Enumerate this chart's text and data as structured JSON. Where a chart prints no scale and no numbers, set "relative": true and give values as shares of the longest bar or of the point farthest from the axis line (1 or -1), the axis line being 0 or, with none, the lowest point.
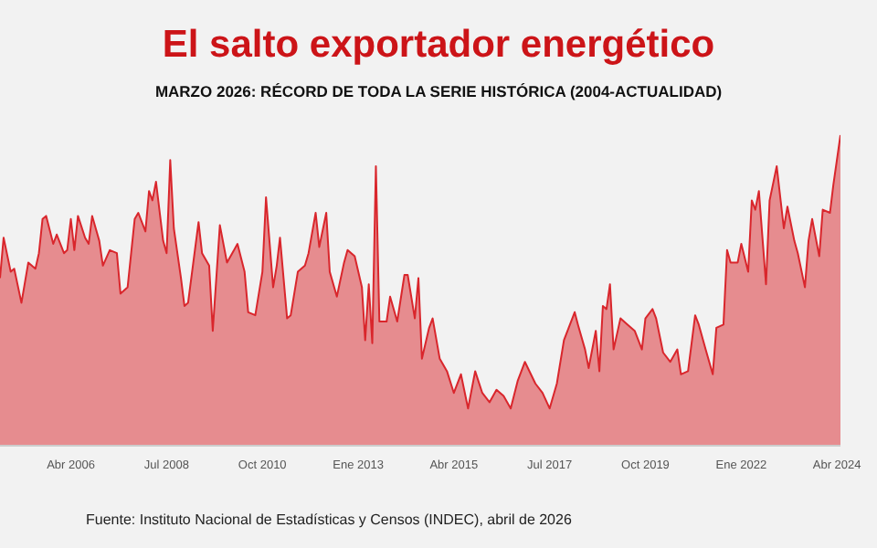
{
  "chart_data": {
    "type": "area",
    "title": "El salto exportador energético",
    "subtitle": "MARZO 2026: RÉCORD DE TODA LA SERIE HISTÓRICA (2004-ACTUALIDAD)",
    "relative": true,
    "x": [
      "2004-08",
      "2004-09",
      "2004-11",
      "2004-12",
      "2005-02",
      "2005-04",
      "2005-06",
      "2005-07",
      "2005-08",
      "2005-09",
      "2005-11",
      "2005-12",
      "2006-02",
      "2006-03",
      "2006-04",
      "2006-05",
      "2006-06",
      "2006-08",
      "2006-09",
      "2006-10",
      "2006-12",
      "2007-01",
      "2007-03",
      "2007-05",
      "2007-06",
      "2007-08",
      "2007-10",
      "2007-11",
      "2008-01",
      "2008-02",
      "2008-03",
      "2008-04",
      "2008-06",
      "2008-07",
      "2008-08",
      "2008-09",
      "2008-11",
      "2008-12",
      "2009-01",
      "2009-04",
      "2009-05",
      "2009-07",
      "2009-08",
      "2009-10",
      "2009-12",
      "2010-01",
      "2010-03",
      "2010-05",
      "2010-06",
      "2010-08",
      "2010-10",
      "2010-11",
      "2011-01",
      "2011-02",
      "2011-03",
      "2011-05",
      "2011-06",
      "2011-08",
      "2011-10",
      "2011-11",
      "2012-01",
      "2012-02",
      "2012-04",
      "2012-05",
      "2012-07",
      "2012-09",
      "2012-10",
      "2012-12",
      "2013-02",
      "2013-03",
      "2013-04",
      "2013-05",
      "2013-06",
      "2013-07",
      "2013-09",
      "2013-10",
      "2013-12",
      "2014-02",
      "2014-03",
      "2014-05",
      "2014-06",
      "2014-07",
      "2014-09",
      "2014-10",
      "2014-12",
      "2015-02",
      "2015-04",
      "2015-06",
      "2015-08",
      "2015-10",
      "2015-12",
      "2016-02",
      "2016-04",
      "2016-06",
      "2016-08",
      "2016-10",
      "2016-12",
      "2017-03",
      "2017-05",
      "2017-07",
      "2017-09",
      "2017-11",
      "2018-02",
      "2018-03",
      "2018-05",
      "2018-06",
      "2018-08",
      "2018-09",
      "2018-10",
      "2018-11",
      "2018-12",
      "2019-01",
      "2019-03",
      "2019-05",
      "2019-07",
      "2019-09",
      "2019-10",
      "2019-12",
      "2020-01",
      "2020-03",
      "2020-05",
      "2020-07",
      "2020-08",
      "2020-10",
      "2020-12",
      "2021-01",
      "2021-03",
      "2021-05",
      "2021-06",
      "2021-08",
      "2021-09",
      "2021-10",
      "2021-12",
      "2022-01",
      "2022-03",
      "2022-04",
      "2022-05",
      "2022-06",
      "2022-08",
      "2022-09",
      "2022-11",
      "2023-01",
      "2023-02",
      "2023-04",
      "2023-05",
      "2023-07",
      "2023-08",
      "2023-09",
      "2023-11",
      "2023-12",
      "2024-02",
      "2024-03",
      "2024-05"
    ],
    "series": [
      {
        "color": "#d9262c",
        "values": [
          0.54,
          0.67,
          0.56,
          0.57,
          0.46,
          0.59,
          0.57,
          0.62,
          0.73,
          0.74,
          0.65,
          0.68,
          0.62,
          0.63,
          0.73,
          0.63,
          0.74,
          0.67,
          0.65,
          0.74,
          0.66,
          0.58,
          0.63,
          0.62,
          0.49,
          0.51,
          0.73,
          0.75,
          0.69,
          0.82,
          0.79,
          0.85,
          0.66,
          0.62,
          0.92,
          0.7,
          0.54,
          0.45,
          0.46,
          0.72,
          0.62,
          0.58,
          0.37,
          0.71,
          0.59,
          0.61,
          0.65,
          0.56,
          0.43,
          0.42,
          0.56,
          0.8,
          0.51,
          0.58,
          0.67,
          0.41,
          0.42,
          0.56,
          0.58,
          0.62,
          0.75,
          0.64,
          0.75,
          0.56,
          0.48,
          0.59,
          0.63,
          0.61,
          0.51,
          0.34,
          0.52,
          0.33,
          0.9,
          0.4,
          0.4,
          0.48,
          0.4,
          0.55,
          0.55,
          0.41,
          0.54,
          0.28,
          0.38,
          0.41,
          0.28,
          0.24,
          0.17,
          0.23,
          0.12,
          0.24,
          0.17,
          0.14,
          0.18,
          0.16,
          0.12,
          0.21,
          0.27,
          0.2,
          0.17,
          0.12,
          0.2,
          0.34,
          0.43,
          0.39,
          0.31,
          0.25,
          0.37,
          0.24,
          0.45,
          0.44,
          0.52,
          0.31,
          0.41,
          0.39,
          0.37,
          0.31,
          0.41,
          0.44,
          0.41,
          0.3,
          0.27,
          0.31,
          0.23,
          0.24,
          0.42,
          0.39,
          0.31,
          0.23,
          0.38,
          0.39,
          0.63,
          0.59,
          0.59,
          0.65,
          0.56,
          0.79,
          0.76,
          0.82,
          0.52,
          0.79,
          0.9,
          0.7,
          0.77,
          0.66,
          0.62,
          0.51,
          0.66,
          0.73,
          0.61,
          0.76,
          0.75,
          0.84,
          1.0
        ]
      }
    ],
    "xlim": [
      "2004-08",
      "2024-05"
    ],
    "xticks": [
      {
        "value": "2006-04",
        "label": "Abr 2006"
      },
      {
        "value": "2008-07",
        "label": "Jul 2008"
      },
      {
        "value": "2010-10",
        "label": "Oct 2010"
      },
      {
        "value": "2013-01",
        "label": "Ene 2013"
      },
      {
        "value": "2015-04",
        "label": "Abr 2015"
      },
      {
        "value": "2017-07",
        "label": "Jul 2017"
      },
      {
        "value": "2019-10",
        "label": "Oct 2019"
      },
      {
        "value": "2022-01",
        "label": "Ene 2022"
      },
      {
        "value": "2024-04",
        "label": "Abr 2024"
      }
    ],
    "annotations": [
      "Fuente: Instituto Nacional de Estadísticas y Censos (INDEC), abril de 2026"
    ]
  }
}
